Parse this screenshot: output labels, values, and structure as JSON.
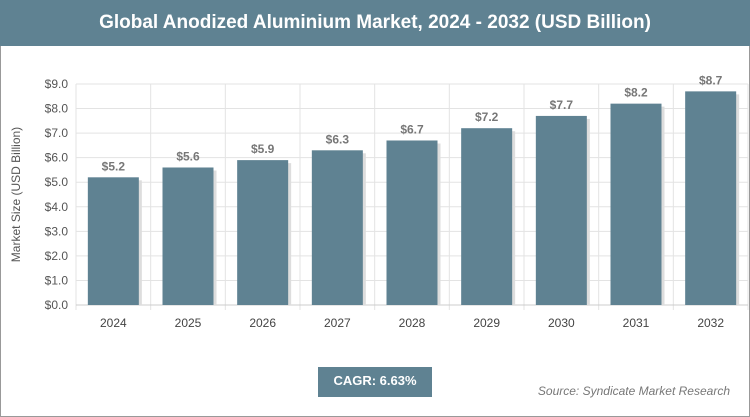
{
  "chart_data": {
    "type": "bar",
    "title": "Global Anodized Aluminium Market, 2024 - 2032 (USD Billion)",
    "ylabel": "Market Size (USD Billion)",
    "xlabel": "",
    "categories": [
      "2024",
      "2025",
      "2026",
      "2027",
      "2028",
      "2029",
      "2030",
      "2031",
      "2032"
    ],
    "values": [
      5.2,
      5.6,
      5.9,
      6.3,
      6.7,
      7.2,
      7.7,
      8.2,
      8.7
    ],
    "data_labels": [
      "$5.2",
      "$5.6",
      "$5.9",
      "$6.3",
      "$6.7",
      "$7.2",
      "$7.7",
      "$8.2",
      "$8.7"
    ],
    "ylim": [
      0,
      9
    ],
    "yticks": [
      "$0.0",
      "$1.0",
      "$2.0",
      "$3.0",
      "$4.0",
      "$5.0",
      "$6.0",
      "$7.0",
      "$8.0",
      "$9.0"
    ],
    "grid": true,
    "bar_color": "#5f8292"
  },
  "footer": {
    "cagr": "CAGR: 6.63%",
    "source": "Source: Syndicate Market Research"
  }
}
